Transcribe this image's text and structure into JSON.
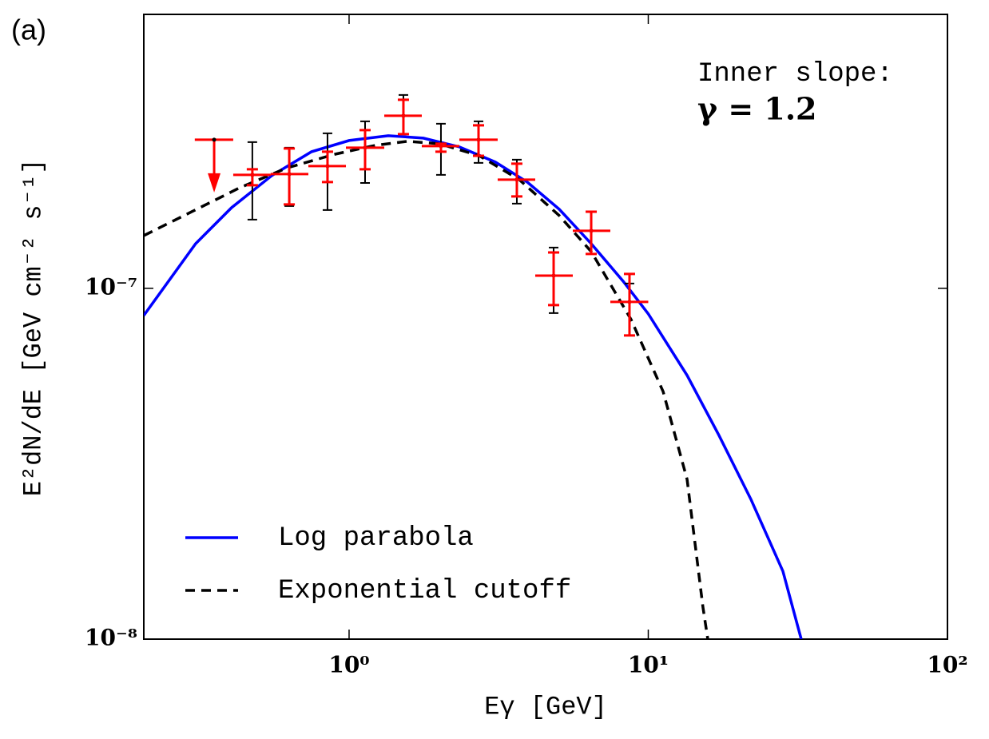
{
  "chart_data": {
    "type": "line",
    "panel_label": "(a)",
    "xlabel": "Eγ [GeV]",
    "ylabel": "E²dN/dE [GeV cm⁻² s⁻¹]",
    "annotations": [
      "Inner slope:",
      "γ = 1.2"
    ],
    "xscale": "log",
    "yscale": "log",
    "xlim": [
      0.206,
      100
    ],
    "ylim": [
      1e-08,
      6.04e-07
    ],
    "xticks": [
      {
        "value": 1,
        "label": "10⁰"
      },
      {
        "value": 10,
        "label": "10¹"
      },
      {
        "value": 100,
        "label": "10²"
      }
    ],
    "yticks": [
      {
        "value": 1e-08,
        "label": "10⁻⁸"
      },
      {
        "value": 1e-07,
        "label": "10⁻⁷"
      }
    ],
    "legend": "lower left",
    "series": [
      {
        "name": "Log parabola",
        "color": "#0000ff",
        "dash": false,
        "x": [
          0.206,
          0.307,
          0.405,
          0.551,
          0.749,
          1.0,
          1.352,
          1.771,
          2.336,
          3.082,
          3.94,
          5.04,
          6.445,
          8.24,
          10,
          13.48,
          17.23,
          22.03,
          28.18,
          32.45
        ],
        "values": [
          8.37e-08,
          1.341e-07,
          1.699e-07,
          2.095e-07,
          2.452e-07,
          2.639e-07,
          2.724e-07,
          2.681e-07,
          2.531e-07,
          2.291e-07,
          2.009e-07,
          1.681e-07,
          1.341e-07,
          1.048e-07,
          8.46e-08,
          5.65e-08,
          3.81e-08,
          2.504e-08,
          1.562e-08,
          1e-08
        ]
      },
      {
        "name": "Exponential cutoff",
        "color": "#000000",
        "dash": true,
        "x": [
          0.206,
          0.298,
          0.431,
          0.623,
          0.901,
          1.225,
          1.566,
          2.003,
          2.724,
          3.706,
          5.04,
          6.445,
          8.76,
          11.21,
          13.48,
          15.23,
          15.81
        ],
        "values": [
          1.414e-07,
          1.654e-07,
          1.936e-07,
          2.208e-07,
          2.414e-07,
          2.557e-07,
          2.625e-07,
          2.584e-07,
          2.388e-07,
          2.041e-07,
          1.612e-07,
          1.273e-07,
          8.15e-08,
          5.08e-08,
          2.855e-08,
          1.234e-08,
          1e-08
        ]
      }
    ],
    "points": [
      {
        "color": "#000000",
        "x": [
          0.475,
          0.631,
          0.847,
          1.131,
          1.519,
          2.028,
          2.708,
          3.637,
          4.827,
          6.445,
          8.654
        ],
        "values": [
          2.106e-07,
          2.117e-07,
          2.231e-07,
          2.517e-07,
          3.105e-07,
          2.544e-07,
          2.653e-07,
          2.041e-07,
          1.087e-07,
          1.459e-07,
          9.15e-08
        ],
        "y_lower": [
          1.57e-07,
          1.717e-07,
          1.672e-07,
          1.998e-07,
          2.752e-07,
          2.106e-07,
          2.279e-07,
          1.744e-07,
          8.5e-08,
          1.253e-07,
          7.34e-08
        ],
        "y_upper": [
          2.611e-07,
          2.517e-07,
          2.766e-07,
          2.993e-07,
          3.558e-07,
          2.946e-07,
          2.993e-07,
          2.327e-07,
          1.307e-07,
          1.654e-07,
          1.032e-07
        ]
      },
      {
        "color": "#ff0000",
        "x": [
          0.475,
          0.631,
          0.847,
          1.131,
          1.519,
          2.028,
          2.708,
          3.637,
          4.827,
          6.445,
          8.654
        ],
        "values": [
          2.106e-07,
          2.117e-07,
          2.231e-07,
          2.517e-07,
          3.105e-07,
          2.544e-07,
          2.653e-07,
          2.041e-07,
          1.087e-07,
          1.459e-07,
          9.15e-08
        ],
        "x_lower": [
          0.41,
          0.547,
          0.731,
          0.976,
          1.311,
          1.75,
          2.336,
          3.138,
          4.19,
          5.594,
          7.468
        ],
        "x_upper": [
          0.547,
          0.731,
          0.976,
          1.311,
          1.75,
          2.336,
          3.138,
          4.19,
          5.594,
          7.468,
          10.0
        ],
        "y_lower": [
          1.967e-07,
          1.735e-07,
          2.009e-07,
          2.185e-07,
          2.752e-07,
          2.452e-07,
          2.388e-07,
          1.828e-07,
          8.96e-08,
          1.253e-07,
          7.34e-08
        ],
        "y_upper": [
          2.185e-07,
          2.504e-07,
          2.452e-07,
          2.825e-07,
          3.448e-07,
          2.584e-07,
          2.915e-07,
          2.267e-07,
          1.266e-07,
          1.654e-07,
          1.099e-07
        ]
      }
    ],
    "upper_limits": {
      "color": "#ff0000",
      "x": [
        0.354
      ],
      "values": [
        2.653e-07
      ],
      "x_lower": [
        0.305
      ],
      "x_upper": [
        0.41
      ]
    }
  }
}
